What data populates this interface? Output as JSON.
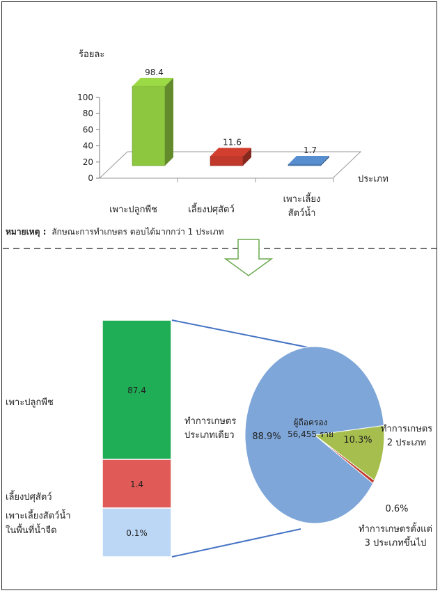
{
  "chart_data": [
    {
      "type": "bar",
      "ylabel": "ร้อยละ",
      "xlabel": "ประเภท",
      "ylim": [
        0,
        100
      ],
      "yticks": [
        0,
        20,
        40,
        60,
        80,
        100
      ],
      "categories": [
        "เพาะปลูกพืช",
        "เลี้ยงปศุสัตว์",
        "เพาะเลี้ยงสัตว์น้ำ"
      ],
      "category_lines": [
        [
          "เพาะปลูกพืช"
        ],
        [
          "เลี้ยงปศุสัตว์"
        ],
        [
          "เพาะเลี้ยง",
          "สัตว์น้ำ"
        ]
      ],
      "values": [
        98.4,
        11.6,
        1.7
      ],
      "value_labels": [
        "98.4",
        "11.6",
        "1.7"
      ],
      "colors": [
        "#8dc63f",
        "#c0392b",
        "#4f81bd"
      ],
      "note_label": "หมายเหตุ :",
      "note_text": "ลักษณะการทำเกษตร ตอบได้มากกว่า 1 ประเภท"
    },
    {
      "type": "bar",
      "stacked": true,
      "segments": [
        {
          "label_lines": [
            "เพาะปลูกพืช"
          ],
          "value": 87.4,
          "value_label": "87.4",
          "color": "#1fae56"
        },
        {
          "label_lines": [
            "เลี้ยงปศุสัตว์"
          ],
          "value": 1.4,
          "value_label": "1.4",
          "color": "#e05a57"
        },
        {
          "label_lines": [
            "เพาะเลี้ยงสัตว์น้ำ",
            "ในพื้นที่น้ำจืด"
          ],
          "value": 0.1,
          "value_label": "0.1%",
          "color": "#bcd7f5"
        }
      ]
    },
    {
      "type": "pie",
      "center_label_lines": [
        "ผู้ถือครอง",
        "56,455 ราย"
      ],
      "slices": [
        {
          "label_lines": [
            "ทำการเกษตร",
            "ประเภทเดียว"
          ],
          "value": 88.9,
          "value_label": "88.9%",
          "color": "#7ea6d8"
        },
        {
          "label_lines": [
            "ทำการเกษตร",
            "2 ประเภท"
          ],
          "value": 10.3,
          "value_label": "10.3%",
          "color": "#a6be4d"
        },
        {
          "label_lines": [
            "ทำการเกษตรตั้งแต่",
            "3 ประเภทขึ้นไป"
          ],
          "value": 0.6,
          "value_label": "0.6%",
          "color": "#c0392b"
        }
      ]
    }
  ],
  "colors": {
    "frame": "#222222",
    "divider": "#444444",
    "arrow": "#6aa84f",
    "connector": "#4472c4"
  }
}
